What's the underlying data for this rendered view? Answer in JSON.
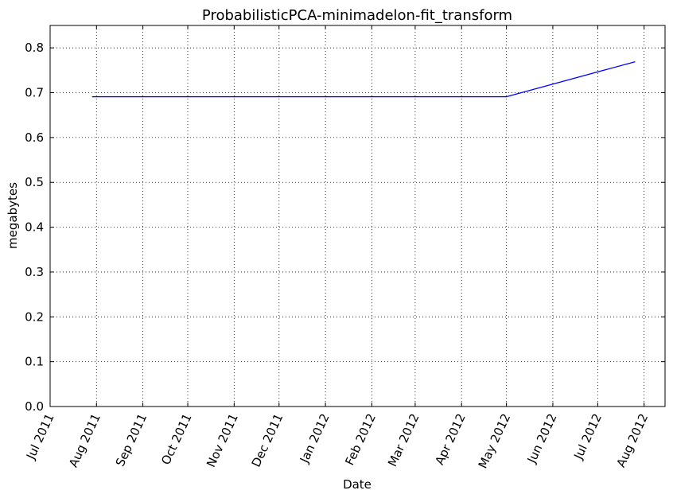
{
  "chart_data": {
    "type": "line",
    "title": "ProbabilisticPCA-minimadelon-fit_transform",
    "xlabel": "Date",
    "ylabel": "megabytes",
    "x_tick_labels": [
      "Jul 2011",
      "Aug 2011",
      "Sep 2011",
      "Oct 2011",
      "Nov 2011",
      "Dec 2011",
      "Jan 2012",
      "Feb 2012",
      "Mar 2012",
      "Apr 2012",
      "May 2012",
      "Jun 2012",
      "Jul 2012",
      "Aug 2012"
    ],
    "x_tick_dates": [
      "2011-07-01",
      "2011-08-01",
      "2011-09-01",
      "2011-10-01",
      "2011-11-01",
      "2011-12-01",
      "2012-01-01",
      "2012-02-01",
      "2012-03-01",
      "2012-04-01",
      "2012-05-01",
      "2012-06-01",
      "2012-07-01",
      "2012-08-01"
    ],
    "xlim": [
      "2011-07-01",
      "2012-08-15"
    ],
    "y_tick_labels": [
      "0.0",
      "0.1",
      "0.2",
      "0.3",
      "0.4",
      "0.5",
      "0.6",
      "0.7",
      "0.8"
    ],
    "ylim": [
      0,
      0.85
    ],
    "grid": true,
    "series": [
      {
        "color": "#0000ff",
        "x": [
          "2011-07-29",
          "2012-05-01",
          "2012-07-26"
        ],
        "y": [
          0.691,
          0.691,
          0.769
        ]
      }
    ]
  }
}
